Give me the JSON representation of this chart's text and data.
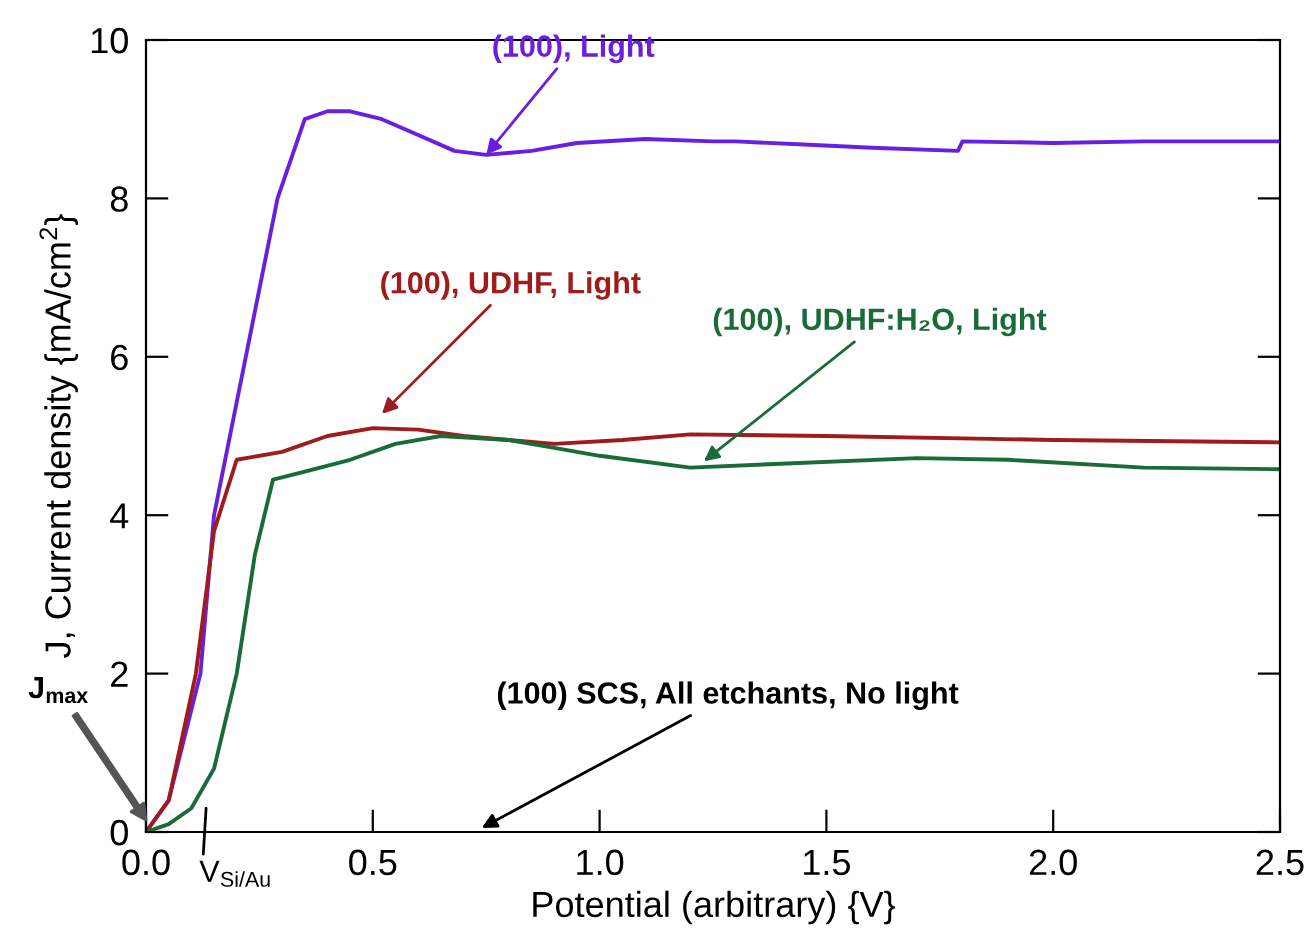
{
  "chart_data": {
    "type": "line",
    "xlabel": "Potential (arbitrary) {V}",
    "ylabel": "J, Current density {mA/cm$^{2}$}",
    "xlim": [
      0,
      2.5
    ],
    "ylim": [
      0,
      10
    ],
    "xticks": [
      {
        "value": 0,
        "label": "0.0"
      },
      0.5,
      {
        "value": 1,
        "label": "1.0"
      },
      1.5,
      {
        "value": 2,
        "label": "2.0"
      },
      2.5
    ],
    "yticks": [
      0,
      2,
      4,
      6,
      8,
      10
    ],
    "grid": false,
    "marker": "none",
    "line_style": "solid",
    "series": [
      {
        "color": "#6a1fe0",
        "x": [
          0,
          0.05,
          0.12,
          0.15,
          0.22,
          0.29,
          0.35,
          0.4,
          0.45,
          0.52,
          0.6,
          0.68,
          0.75,
          0.85,
          0.95,
          1.1,
          1.25,
          1.3,
          1.45,
          1.6,
          1.79,
          1.8,
          2.0,
          2.2,
          2.5
        ],
        "values": [
          0,
          0.4,
          2,
          4,
          6,
          8,
          9,
          9.1,
          9.1,
          9.0,
          8.8,
          8.6,
          8.55,
          8.6,
          8.7,
          8.75,
          8.72,
          8.72,
          8.68,
          8.64,
          8.6,
          8.72,
          8.7,
          8.72,
          8.72
        ]
      },
      {
        "color": "#a01c1c",
        "x": [
          0,
          0.05,
          0.11,
          0.15,
          0.2,
          0.3,
          0.4,
          0.5,
          0.6,
          0.7,
          0.8,
          0.9,
          1.05,
          1.2,
          1.5,
          2.0,
          2.5
        ],
        "values": [
          0,
          0.4,
          2,
          3.8,
          4.7,
          4.8,
          5.0,
          5.1,
          5.08,
          5.0,
          4.95,
          4.9,
          4.95,
          5.02,
          5.0,
          4.95,
          4.92
        ]
      },
      {
        "color": "#1a6b3a",
        "x": [
          0,
          0.05,
          0.1,
          0.15,
          0.2,
          0.24,
          0.28,
          0.35,
          0.45,
          0.55,
          0.65,
          0.8,
          0.9,
          1.0,
          1.2,
          1.4,
          1.7,
          1.9,
          2.2,
          2.5
        ],
        "values": [
          0,
          0.1,
          0.3,
          0.8,
          2,
          3.5,
          4.45,
          4.55,
          4.7,
          4.9,
          5.0,
          4.95,
          4.85,
          4.75,
          4.6,
          4.65,
          4.72,
          4.7,
          4.6,
          4.58
        ]
      }
    ],
    "annotations": [
      {
        "text": "(100), Light",
        "x": 0.75,
        "y": 8.55
      },
      "(100), UDHF, Light",
      {
        "text": "(100), UDHF:H₂O, Light",
        "x": 1.23,
        "y": 4.68
      },
      "(100) SCS, All etchants, No light",
      "J$_{max}$",
      "V$_{Si/Au}$"
    ]
  }
}
